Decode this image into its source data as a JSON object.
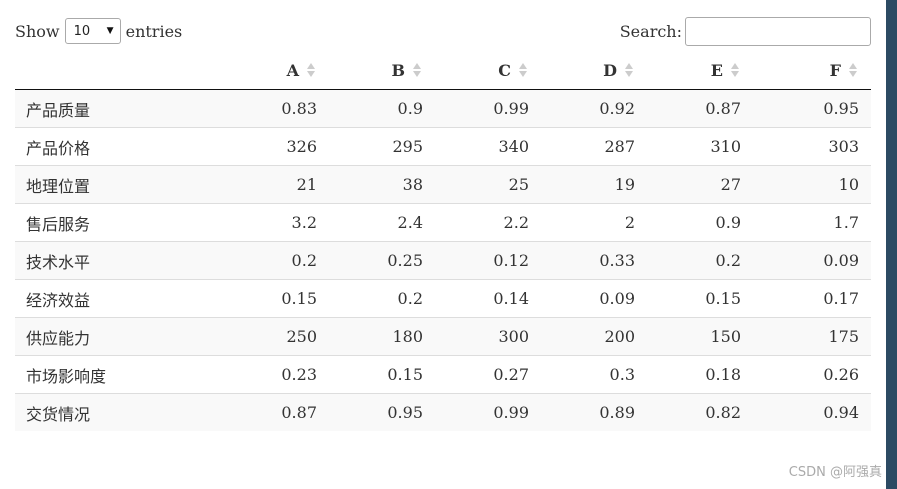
{
  "length_menu": {
    "prefix": "Show",
    "selected": "10",
    "suffix": "entries"
  },
  "search": {
    "label": "Search:",
    "value": "",
    "placeholder": ""
  },
  "table": {
    "row_header": "",
    "columns": [
      "A",
      "B",
      "C",
      "D",
      "E",
      "F"
    ],
    "rows": [
      {
        "label": "产品质量",
        "values": [
          "0.83",
          "0.9",
          "0.99",
          "0.92",
          "0.87",
          "0.95"
        ]
      },
      {
        "label": "产品价格",
        "values": [
          "326",
          "295",
          "340",
          "287",
          "310",
          "303"
        ]
      },
      {
        "label": "地理位置",
        "values": [
          "21",
          "38",
          "25",
          "19",
          "27",
          "10"
        ]
      },
      {
        "label": "售后服务",
        "values": [
          "3.2",
          "2.4",
          "2.2",
          "2",
          "0.9",
          "1.7"
        ]
      },
      {
        "label": "技术水平",
        "values": [
          "0.2",
          "0.25",
          "0.12",
          "0.33",
          "0.2",
          "0.09"
        ]
      },
      {
        "label": "经济效益",
        "values": [
          "0.15",
          "0.2",
          "0.14",
          "0.09",
          "0.15",
          "0.17"
        ]
      },
      {
        "label": "供应能力",
        "values": [
          "250",
          "180",
          "300",
          "200",
          "150",
          "175"
        ]
      },
      {
        "label": "市场影响度",
        "values": [
          "0.23",
          "0.15",
          "0.27",
          "0.3",
          "0.18",
          "0.26"
        ]
      },
      {
        "label": "交货情况",
        "values": [
          "0.87",
          "0.95",
          "0.99",
          "0.89",
          "0.82",
          "0.94"
        ]
      }
    ]
  },
  "watermark": "CSDN @阿强真",
  "colors": {
    "sidebar": "#2c4a63",
    "stripe": "#f9f9f9",
    "sort_arrow": "#cccccc"
  }
}
